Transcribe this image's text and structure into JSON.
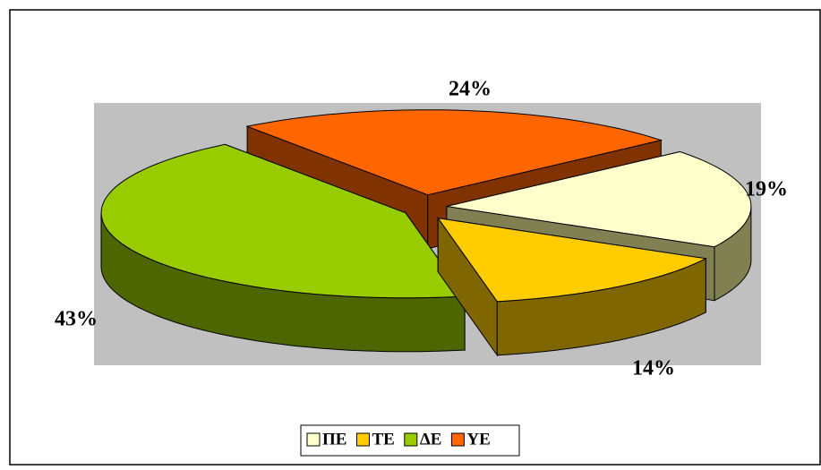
{
  "chart_data": {
    "type": "pie3d",
    "categories": [
      "ΠΕ",
      "ΤΕ",
      "ΔΕ",
      "ΥΕ"
    ],
    "values": [
      19,
      14,
      43,
      24
    ],
    "value_labels": [
      "19%",
      "14%",
      "43%",
      "24%"
    ],
    "colors": [
      "#FFFFCC",
      "#FFCC00",
      "#99CC00",
      "#FF6600"
    ],
    "legend": "bottom"
  }
}
